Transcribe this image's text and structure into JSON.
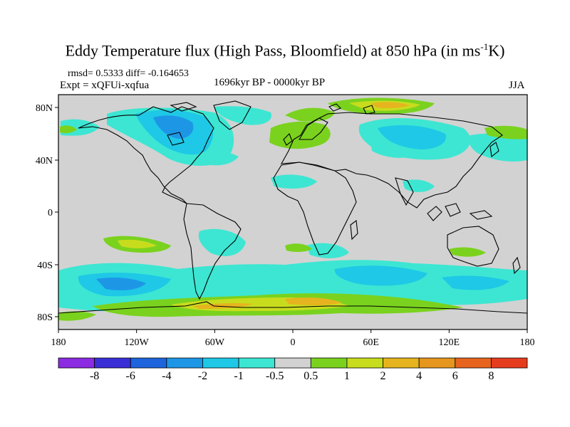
{
  "title": {
    "prefix": "Eddy Temperature flux (High Pass, Bloomfield) at 850 hPa (in ms",
    "sup": "-1",
    "suffix": "K)"
  },
  "stats": "rmsd= 0.5333 diff= -0.164653",
  "experiment": "Expt = xQFUi-xqfua",
  "period": "1696kyr BP - 0000kyr BP",
  "season": "JJA",
  "axes": {
    "lat_ticks": [
      "80N",
      "40N",
      "0",
      "40S",
      "80S"
    ],
    "lon_ticks": [
      "180",
      "120W",
      "60W",
      "0",
      "60E",
      "120E",
      "180"
    ]
  },
  "colorbar": {
    "labels": [
      "-8",
      "-6",
      "-4",
      "-2",
      "-1",
      "-0.5",
      "0.5",
      "1",
      "2",
      "4",
      "6",
      "8"
    ],
    "colors": [
      "#8b2be2",
      "#3a2fd6",
      "#1e64dc",
      "#1e96e6",
      "#1ec8e6",
      "#3de6d2",
      "#d2d2d2",
      "#7ad21e",
      "#c8dc1e",
      "#e6b41e",
      "#e6961e",
      "#e6641e",
      "#e63c1e"
    ]
  },
  "map_colors": {
    "background": "#d2d2d2",
    "coast": "#000000"
  }
}
